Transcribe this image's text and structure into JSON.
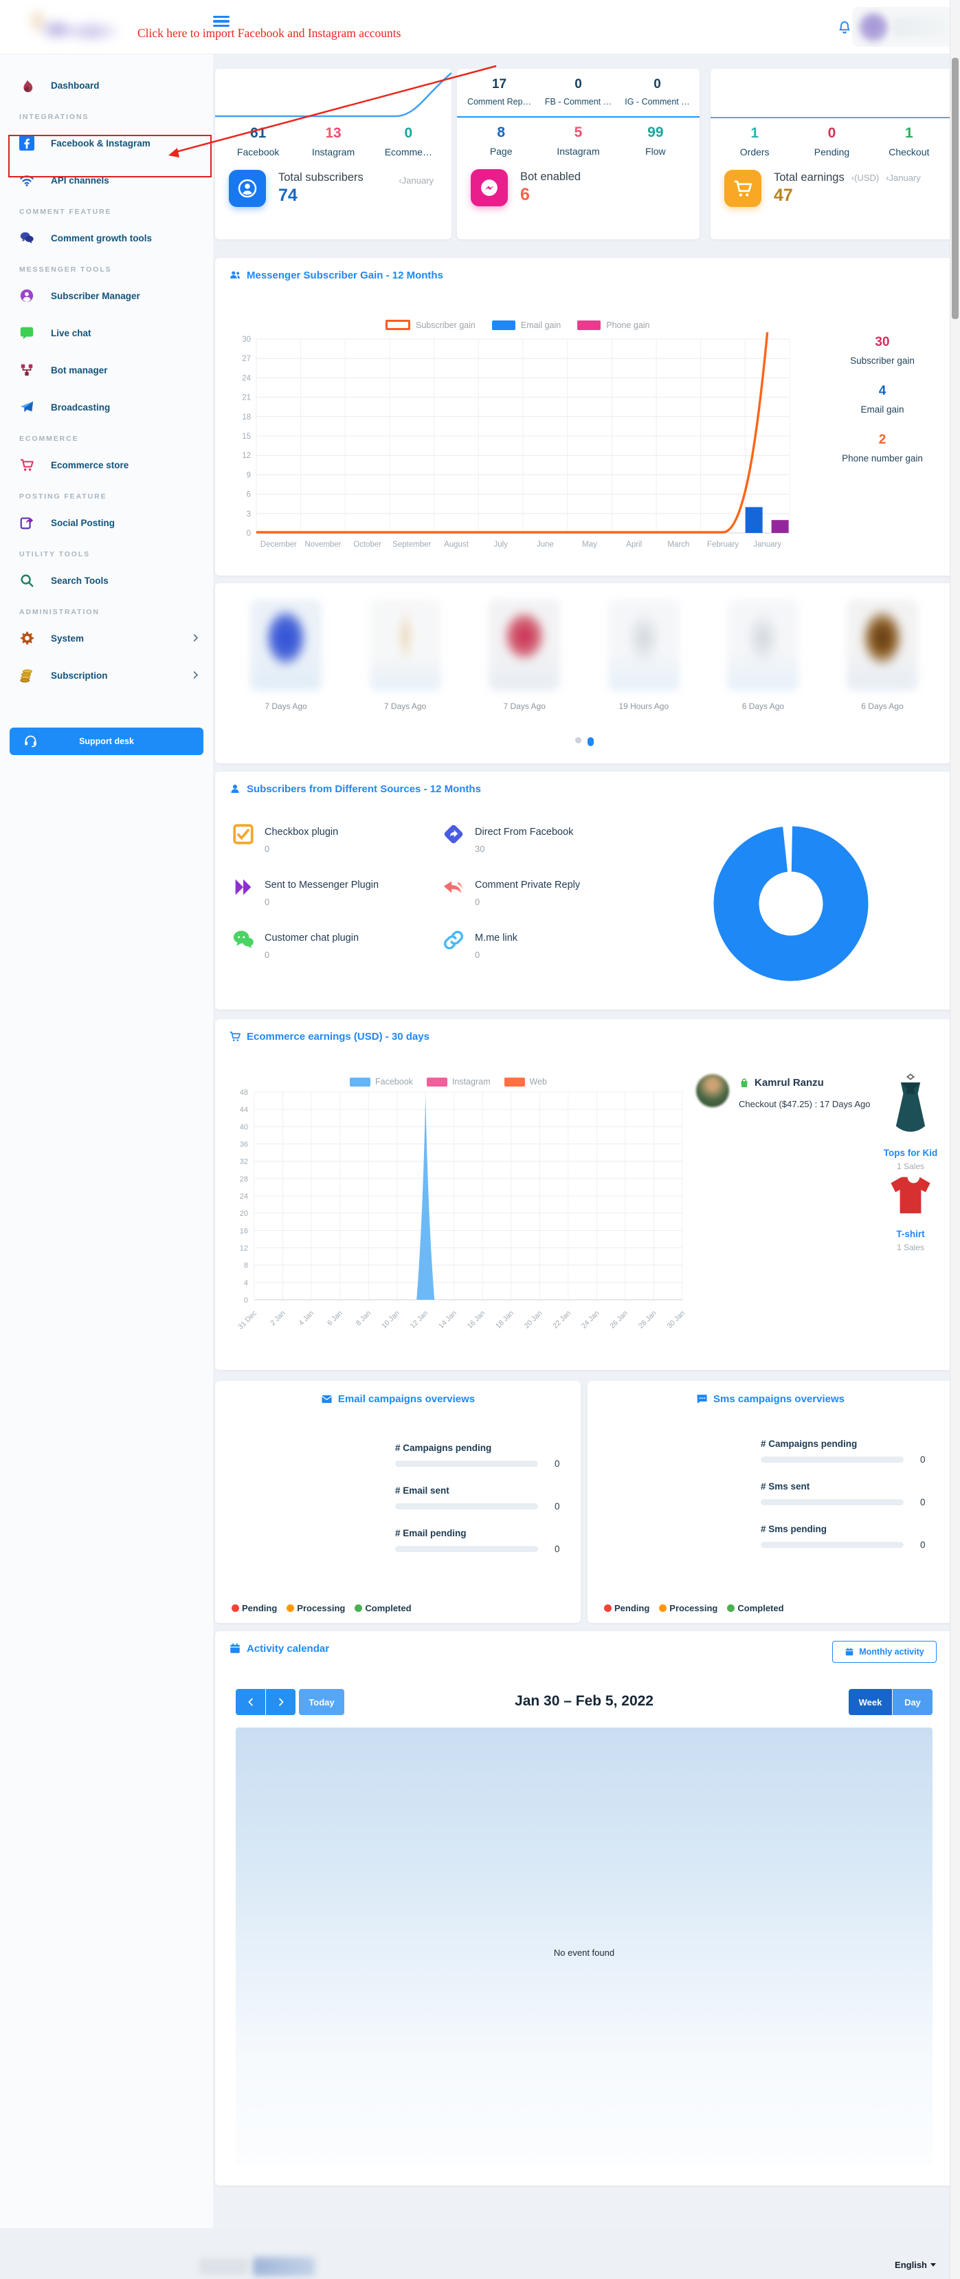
{
  "theme": {
    "accent": "#1e88f7"
  },
  "header": {
    "annotation": "Click here to import Facebook and Instagram accounts"
  },
  "sidebar": {
    "entries": [
      {
        "type": "item",
        "icon": "dashboard-flame",
        "label": "Dashboard"
      },
      {
        "type": "header",
        "label": "INTEGRATIONS"
      },
      {
        "type": "item",
        "icon": "facebook",
        "label": "Facebook & Instagram",
        "highlighted": true
      },
      {
        "type": "item",
        "icon": "wifi",
        "label": "API channels"
      },
      {
        "type": "header",
        "label": "COMMENT FEATURE"
      },
      {
        "type": "item",
        "icon": "comments",
        "label": "Comment growth tools"
      },
      {
        "type": "header",
        "label": "MESSENGER TOOLS"
      },
      {
        "type": "item",
        "icon": "subscriber",
        "label": "Subscriber Manager"
      },
      {
        "type": "item",
        "icon": "live-chat",
        "label": "Live chat"
      },
      {
        "type": "item",
        "icon": "bot",
        "label": "Bot manager"
      },
      {
        "type": "item",
        "icon": "broadcast",
        "label": "Broadcasting"
      },
      {
        "type": "header",
        "label": "ECOMMERCE"
      },
      {
        "type": "item",
        "icon": "store-cart",
        "label": "Ecommerce store"
      },
      {
        "type": "header",
        "label": "POSTING FEATURE"
      },
      {
        "type": "item",
        "icon": "share",
        "label": "Social Posting"
      },
      {
        "type": "header",
        "label": "UTILITY TOOLS"
      },
      {
        "type": "item",
        "icon": "search",
        "label": "Search Tools"
      },
      {
        "type": "header",
        "label": "ADMINISTRATION"
      },
      {
        "type": "item",
        "icon": "gear",
        "label": "System",
        "chevron": true
      },
      {
        "type": "item",
        "icon": "coins",
        "label": "Subscription",
        "chevron": true
      }
    ],
    "support_label": "Support desk"
  },
  "top_cards": {
    "subscribers": {
      "stats": [
        {
          "value": "61",
          "label": "Facebook",
          "color": "#17548c"
        },
        {
          "value": "13",
          "label": "Instagram",
          "color": "insta"
        },
        {
          "value": "0",
          "label": "Ecomme…",
          "color": "#1aa5a0"
        }
      ],
      "summary_label": "Total subscribers",
      "summary_value": "74",
      "value_color": "#1a66c2",
      "period": "‹January"
    },
    "bot": {
      "top_stats": [
        {
          "value": "17",
          "label": "Comment Rep…"
        },
        {
          "value": "0",
          "label": "FB - Comment …"
        },
        {
          "value": "0",
          "label": "IG - Comment …"
        }
      ],
      "stats": [
        {
          "value": "8",
          "label": "Page",
          "color": "#1565c0"
        },
        {
          "value": "5",
          "label": "Instagram",
          "color": "insta"
        },
        {
          "value": "99",
          "label": "Flow",
          "color": "#1aa5a0"
        }
      ],
      "summary_label": "Bot enabled",
      "summary_value": "6",
      "value_color": "#f2654a"
    },
    "earnings": {
      "stats": [
        {
          "value": "1",
          "label": "Orders",
          "color": "#29b3ad"
        },
        {
          "value": "0",
          "label": "Pending",
          "color": "#d63158"
        },
        {
          "value": "1",
          "label": "Checkout",
          "color": "#27ae60"
        }
      ],
      "summary_label": "Total earnings",
      "summary_unit": "‹(USD)",
      "period": "‹January",
      "summary_value": "47",
      "value_color": "#b8831d"
    }
  },
  "messenger": {
    "title": "Messenger Subscriber Gain - 12 Months",
    "chart": {
      "type": "mixed",
      "categories": [
        "December",
        "November",
        "October",
        "September",
        "August",
        "July",
        "June",
        "May",
        "April",
        "March",
        "February",
        "January"
      ],
      "series": [
        {
          "name": "Subscriber gain",
          "kind": "line",
          "color": "#ff6418",
          "legend_color": "#ff5a1f",
          "values": [
            0,
            0,
            0,
            0,
            0,
            0,
            0,
            0,
            0,
            0,
            0,
            30
          ]
        },
        {
          "name": "Email gain",
          "kind": "bar",
          "color": "#1566d9",
          "legend_color": "#1e88f7",
          "values": [
            0,
            0,
            0,
            0,
            0,
            0,
            0,
            0,
            0,
            0,
            0,
            4
          ]
        },
        {
          "name": "Phone gain",
          "kind": "bar",
          "color": "#93279b",
          "legend_color": "#ec3b8e",
          "values": [
            0,
            0,
            0,
            0,
            0,
            0,
            0,
            0,
            0,
            0,
            0,
            2
          ]
        }
      ],
      "ylim": [
        0,
        30
      ],
      "ytick_step": 3,
      "grid": true,
      "legend_position": "top"
    },
    "summary": [
      {
        "value": "30",
        "label": "Subscriber gain",
        "color": "#d32f5b"
      },
      {
        "value": "4",
        "label": "Email gain",
        "color": "#1565c0"
      },
      {
        "value": "2",
        "label": "Phone number gain",
        "color": "#f4622e"
      }
    ]
  },
  "carousel": {
    "captions": [
      "7 Days Ago",
      "7 Days Ago",
      "7 Days Ago",
      "19 Hours Ago",
      "6 Days Ago",
      "6 Days Ago"
    ],
    "dot_count": 2,
    "active_dot": 1
  },
  "sources": {
    "title": "Subscribers from Different Sources - 12 Months",
    "items": [
      {
        "icon": "checkbox",
        "label": "Checkbox plugin",
        "value": "0"
      },
      {
        "icon": "diamond-arrow",
        "label": "Direct From Facebook",
        "value": "30"
      },
      {
        "icon": "double-play",
        "label": "Sent to Messenger Plugin",
        "value": "0"
      },
      {
        "icon": "reply",
        "label": "Comment Private Reply",
        "value": "0"
      },
      {
        "icon": "chat-dots",
        "label": "Customer chat plugin",
        "value": "0"
      },
      {
        "icon": "link",
        "label": "M.me link",
        "value": "0"
      }
    ],
    "chart": {
      "type": "pie",
      "donut": true,
      "color": "#1e88f7",
      "labels": [
        "Checkbox plugin",
        "Direct From Facebook",
        "Sent to Messenger Plugin",
        "Comment Private Reply",
        "Customer chat plugin",
        "M.me link"
      ],
      "values": [
        0,
        30,
        0,
        0,
        0,
        0
      ]
    }
  },
  "ecommerce": {
    "title": "Ecommerce earnings (USD) - 30 days",
    "chart": {
      "type": "area",
      "x": [
        "31 Dec",
        "2 Jan",
        "4 Jan",
        "6 Jan",
        "8 Jan",
        "10 Jan",
        "12 Jan",
        "14 Jan",
        "16 Jan",
        "18 Jan",
        "20 Jan",
        "22 Jan",
        "24 Jan",
        "26 Jan",
        "28 Jan",
        "30 Jan"
      ],
      "series": [
        {
          "name": "Facebook",
          "color": "#64b5f6",
          "values": [
            0,
            0,
            0,
            0,
            0,
            0,
            47,
            0,
            0,
            0,
            0,
            0,
            0,
            0,
            0,
            0
          ]
        },
        {
          "name": "Instagram",
          "color": "#f0609a",
          "values": [
            0,
            0,
            0,
            0,
            0,
            0,
            0,
            0,
            0,
            0,
            0,
            0,
            0,
            0,
            0,
            0
          ]
        },
        {
          "name": "Web",
          "color": "#ff7043",
          "values": [
            0,
            0,
            0,
            0,
            0,
            0,
            0,
            0,
            0,
            0,
            0,
            0,
            0,
            0,
            0,
            0
          ]
        }
      ],
      "ylim": [
        0,
        48
      ],
      "ytick_step": 4,
      "grid": true
    },
    "checkout": {
      "customer": "Kamrul Ranzu",
      "detail": "Checkout ($47.25) : 17 Days Ago"
    },
    "products": [
      {
        "name": "Tops for Kid",
        "sales": "1 Sales",
        "image": "dress"
      },
      {
        "name": "T-shirt",
        "sales": "1 Sales",
        "image": "tshirt"
      }
    ]
  },
  "campaigns": {
    "email": {
      "title": "Email campaigns overviews",
      "rows": [
        {
          "label": "# Campaigns pending",
          "value": "0"
        },
        {
          "label": "# Email sent",
          "value": "0"
        },
        {
          "label": "# Email pending",
          "value": "0"
        }
      ]
    },
    "sms": {
      "title": "Sms campaigns overviews",
      "rows": [
        {
          "label": "# Campaigns pending",
          "value": "0"
        },
        {
          "label": "# Sms sent",
          "value": "0"
        },
        {
          "label": "# Sms pending",
          "value": "0"
        }
      ]
    },
    "legend": [
      {
        "label": "Pending",
        "color": "#f44336"
      },
      {
        "label": "Processing",
        "color": "#ff9800"
      },
      {
        "label": "Completed",
        "color": "#4caf50"
      }
    ]
  },
  "calendar": {
    "title": "Activity calendar",
    "monthly_button": "Monthly activity",
    "today_button": "Today",
    "range": "Jan 30 – Feb 5, 2022",
    "week_button": "Week",
    "day_button": "Day",
    "empty_message": "No event found"
  },
  "footer": {
    "language": "English"
  }
}
